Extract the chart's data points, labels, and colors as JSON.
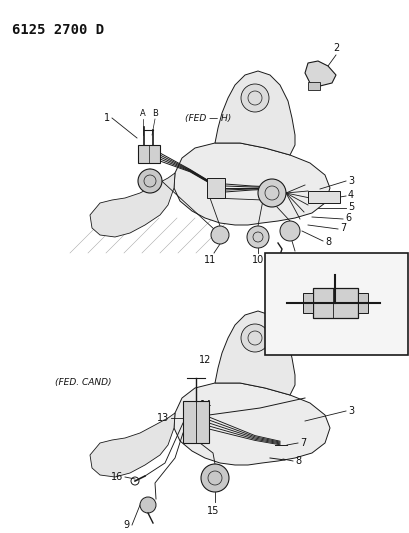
{
  "title": "6125 2700 D",
  "background_color": "#ffffff",
  "line_color": "#1a1a1a",
  "text_color": "#111111",
  "gray_fill": "#d8d8d8",
  "light_fill": "#eeeeee",
  "figsize": [
    4.1,
    5.33
  ],
  "dpi": 100,
  "top_label": "(FED — H)",
  "bottom_label": "(FED. CAND)",
  "callout_fontsize": 7,
  "label_fontsize": 6.5,
  "title_fontsize": 10
}
